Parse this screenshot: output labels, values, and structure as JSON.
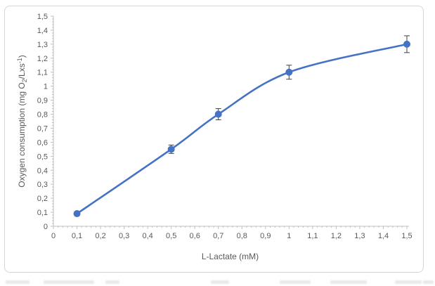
{
  "chart_data": {
    "type": "line",
    "title": "",
    "xlabel": "L-Lactate (mM)",
    "ylabel_plain": "Oxygen consumption (mg O2/Lxs-1)",
    "ylabel_parts": {
      "prefix": "Oxygen consumption (mg O",
      "sub": "2",
      "mid": "/Lxs",
      "sup": "-1",
      "suffix": ")"
    },
    "x": [
      0.1,
      0.5,
      0.7,
      1.0,
      1.5
    ],
    "y": [
      0.09,
      0.55,
      0.8,
      1.1,
      1.3
    ],
    "y_error": [
      0.01,
      0.03,
      0.04,
      0.05,
      0.06
    ],
    "xlim": [
      0,
      1.5
    ],
    "ylim": [
      0,
      1.5
    ],
    "x_ticks": [
      0,
      0.1,
      0.2,
      0.3,
      0.4,
      0.5,
      0.6,
      0.7,
      0.8,
      0.9,
      1,
      1.1,
      1.2,
      1.3,
      1.4,
      1.5
    ],
    "x_tick_labels": [
      "0",
      "0,1",
      "0,2",
      "0,3",
      "0,4",
      "0,5",
      "0,6",
      "0,7",
      "0,8",
      "0,9",
      "1",
      "1,1",
      "1,2",
      "1,3",
      "1,4",
      "1,5"
    ],
    "y_ticks": [
      0,
      0.1,
      0.2,
      0.3,
      0.4,
      0.5,
      0.6,
      0.7,
      0.8,
      0.9,
      1,
      1.1,
      1.2,
      1.3,
      1.4,
      1.5
    ],
    "y_tick_labels": [
      "0",
      "0,1",
      "0,2",
      "0,3",
      "0,4",
      "0,5",
      "0,6",
      "0,7",
      "0,8",
      "0,9",
      "1",
      "1,1",
      "1,2",
      "1,3",
      "1,4",
      "1,5"
    ],
    "minor_tick_step": 0.02,
    "grid": false,
    "legend_position": "none",
    "marker": "circle",
    "colors": {
      "line": "#4472C4",
      "marker": "#4472C4",
      "error_bar": "#404040",
      "axis": "#BFBFBF",
      "tick_label": "#595959",
      "axis_title": "#595959",
      "frame_border": "#D6D6D6",
      "background": "#FFFFFF"
    }
  }
}
